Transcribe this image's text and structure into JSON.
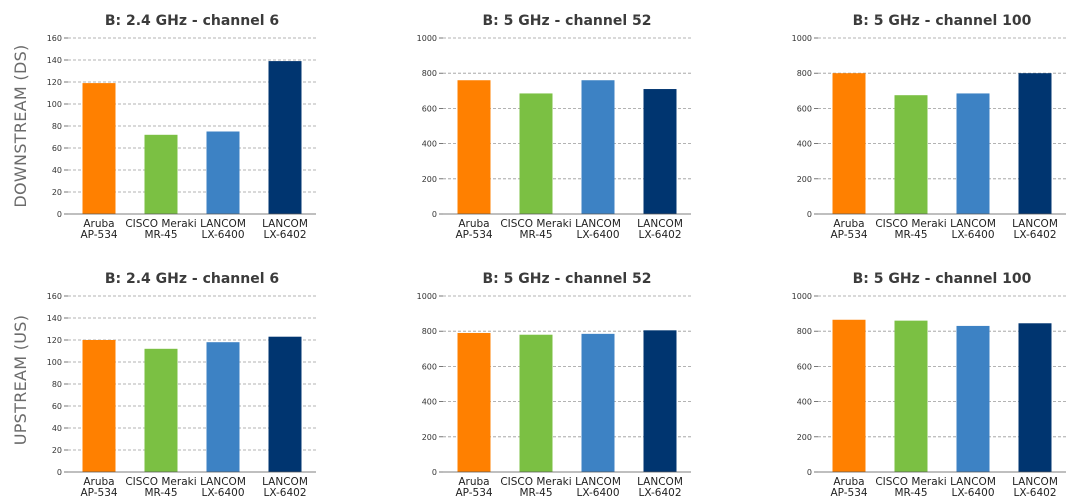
{
  "row_labels": [
    "DOWNSTREAM (DS)",
    "UPSTREAM (US)"
  ],
  "colors": {
    "Aruba AP-534": "#ff8000",
    "CISCO Meraki MR-45": "#7bc043",
    "LANCOM LX-6400": "#3d82c4",
    "LANCOM LX-6402": "#003570"
  },
  "chart_data": [
    {
      "type": "bar",
      "row": 0,
      "col": 0,
      "title": "B: 2.4 GHz - channel 6",
      "categories": [
        "Aruba\nAP-534",
        "CISCO Meraki\nMR-45",
        "LANCOM\nLX-6400",
        "LANCOM\nLX-6402"
      ],
      "values": [
        119,
        72,
        75,
        139
      ],
      "ylim": [
        0,
        160
      ],
      "yticks": [
        0,
        20,
        40,
        60,
        80,
        100,
        120,
        140,
        160
      ],
      "grid": true
    },
    {
      "type": "bar",
      "row": 0,
      "col": 1,
      "title": "B: 5 GHz - channel 52",
      "categories": [
        "Aruba\nAP-534",
        "CISCO Meraki\nMR-45",
        "LANCOM\nLX-6400",
        "LANCOM\nLX-6402"
      ],
      "values": [
        760,
        685,
        760,
        710
      ],
      "ylim": [
        0,
        1000
      ],
      "yticks": [
        0,
        200,
        400,
        600,
        800,
        1000
      ],
      "grid": true
    },
    {
      "type": "bar",
      "row": 0,
      "col": 2,
      "title": "B: 5 GHz - channel 100",
      "categories": [
        "Aruba\nAP-534",
        "CISCO Meraki\nMR-45",
        "LANCOM\nLX-6400",
        "LANCOM\nLX-6402"
      ],
      "values": [
        800,
        675,
        685,
        800
      ],
      "ylim": [
        0,
        1000
      ],
      "yticks": [
        0,
        200,
        400,
        600,
        800,
        1000
      ],
      "grid": true
    },
    {
      "type": "bar",
      "row": 1,
      "col": 0,
      "title": "B: 2.4 GHz - channel 6",
      "categories": [
        "Aruba\nAP-534",
        "CISCO Meraki\nMR-45",
        "LANCOM\nLX-6400",
        "LANCOM\nLX-6402"
      ],
      "values": [
        120,
        112,
        118,
        123
      ],
      "ylim": [
        0,
        160
      ],
      "yticks": [
        0,
        20,
        40,
        60,
        80,
        100,
        120,
        140,
        160
      ],
      "grid": true
    },
    {
      "type": "bar",
      "row": 1,
      "col": 1,
      "title": "B: 5 GHz - channel 52",
      "categories": [
        "Aruba\nAP-534",
        "CISCO Meraki\nMR-45",
        "LANCOM\nLX-6400",
        "LANCOM\nLX-6402"
      ],
      "values": [
        790,
        780,
        785,
        805
      ],
      "ylim": [
        0,
        1000
      ],
      "yticks": [
        0,
        200,
        400,
        600,
        800,
        1000
      ],
      "grid": true
    },
    {
      "type": "bar",
      "row": 1,
      "col": 2,
      "title": "B: 5 GHz - channel 100",
      "categories": [
        "Aruba\nAP-534",
        "CISCO Meraki\nMR-45",
        "LANCOM\nLX-6400",
        "LANCOM\nLX-6402"
      ],
      "values": [
        865,
        860,
        830,
        845
      ],
      "ylim": [
        0,
        1000
      ],
      "yticks": [
        0,
        200,
        400,
        600,
        800,
        1000
      ],
      "grid": true
    }
  ]
}
